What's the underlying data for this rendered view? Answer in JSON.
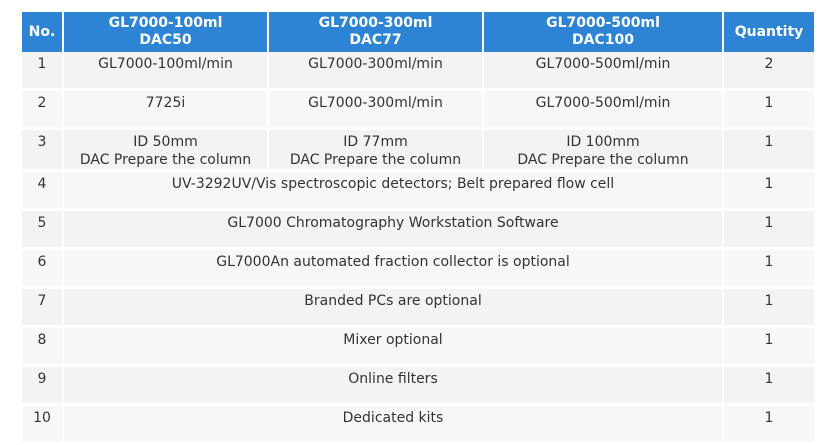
{
  "header": {
    "no": "No.",
    "col_a": [
      "GL7000-100ml",
      "DAC50"
    ],
    "col_b": [
      "GL7000-300ml",
      "DAC77"
    ],
    "col_c": [
      "GL7000-500ml",
      "DAC100"
    ],
    "quantity": "Quantity"
  },
  "rows": [
    {
      "no": "1",
      "a": "GL7000-100ml/min",
      "b": "GL7000-300ml/min",
      "c": "GL7000-500ml/min",
      "qty": "2"
    },
    {
      "no": "2",
      "a": "7725i",
      "b": "GL7000-300ml/min",
      "c": "GL7000-500ml/min",
      "qty": "1"
    },
    {
      "no": "3",
      "a": [
        "ID 50mm",
        "DAC Prepare the column"
      ],
      "b": [
        "ID 77mm",
        "DAC Prepare the column"
      ],
      "c": [
        "ID 100mm",
        "DAC Prepare the column"
      ],
      "qty": "1"
    },
    {
      "no": "4",
      "span": "UV-3292UV/Vis spectroscopic detectors; Belt prepared flow cell",
      "qty": "1"
    },
    {
      "no": "5",
      "span": "GL7000 Chromatography Workstation Software",
      "qty": "1"
    },
    {
      "no": "6",
      "span": "GL7000An automated fraction collector is optional",
      "qty": "1"
    },
    {
      "no": "7",
      "span": "Branded PCs are optional",
      "qty": "1"
    },
    {
      "no": "8",
      "span": "Mixer optional",
      "qty": "1"
    },
    {
      "no": "9",
      "span": "Online filters",
      "qty": "1"
    },
    {
      "no": "10",
      "span": "Dedicated kits",
      "qty": "1"
    }
  ],
  "colors": {
    "header_bg": "#2d84d4",
    "row_bg": "#f3f3f3"
  }
}
